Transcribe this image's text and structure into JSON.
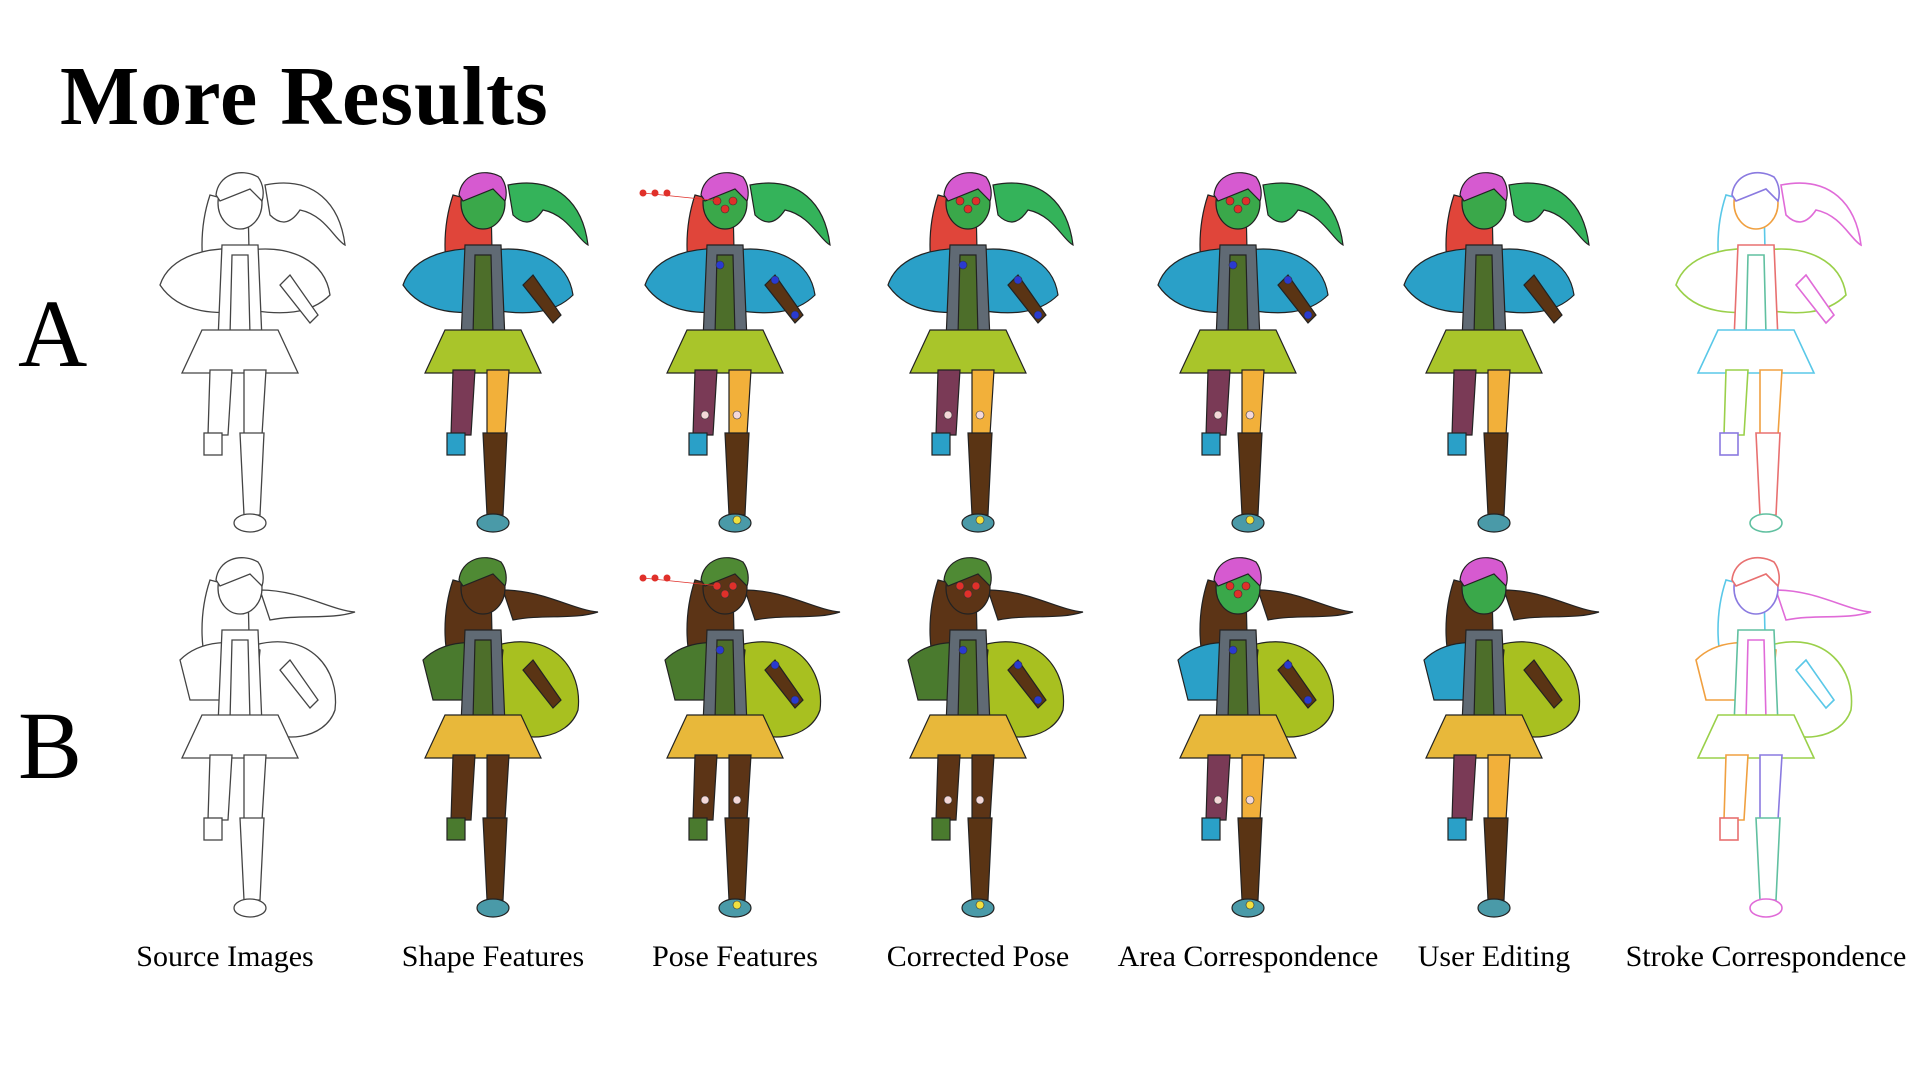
{
  "title": "More Results",
  "rows": [
    {
      "label": "A"
    },
    {
      "label": "B"
    }
  ],
  "columns": [
    {
      "label": "Source Images"
    },
    {
      "label": "Shape Features"
    },
    {
      "label": "Pose Features"
    },
    {
      "label": "Corrected Pose"
    },
    {
      "label": "Area Correspondence"
    },
    {
      "label": "User Editing"
    },
    {
      "label": "Stroke Correspondence"
    }
  ],
  "colors": {
    "hair_pink": "#d65ad0",
    "hair_green": "#34b35a",
    "hair_red": "#e0453a",
    "face_green": "#3aa84a",
    "cape_blue": "#2aa0c8",
    "skirt_lime": "#a9c52a",
    "vest_gray": "#606a74",
    "inner_olive": "#4d6e2a",
    "leg_purple": "#7a3a56",
    "leg_orange": "#f2b03a",
    "boot_brown": "#5a3414",
    "shoe_teal": "#4a9aa8",
    "joint_red": "#e0302a",
    "joint_blue": "#2a3ad0",
    "joint_yellow": "#f0e040",
    "b_hair_olive": "#4f8a34",
    "b_cape_green": "#4a7a2e",
    "b_wing_lime": "#a8c020",
    "b_skirt_yellow": "#e8b83a",
    "b_leg_brown": "#5c3416"
  }
}
